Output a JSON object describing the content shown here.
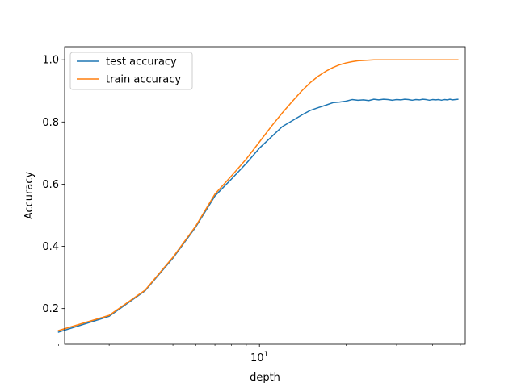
{
  "chart_data": {
    "type": "line",
    "xlabel": "depth",
    "ylabel": "Accuracy",
    "x_scale": "log",
    "xlim": [
      2.1,
      52
    ],
    "ylim": [
      0.085,
      1.042
    ],
    "x_ticks": [
      {
        "value": 10,
        "base": "10",
        "exp": "1"
      }
    ],
    "x_minor_ticks": [
      2,
      3,
      4,
      5,
      6,
      7,
      8,
      9,
      20,
      30,
      40,
      50
    ],
    "y_ticks": [
      {
        "value": 0.2,
        "label": "0.2"
      },
      {
        "value": 0.4,
        "label": "0.4"
      },
      {
        "value": 0.6,
        "label": "0.6"
      },
      {
        "value": 0.8,
        "label": "0.8"
      },
      {
        "value": 1.0,
        "label": "1.0"
      }
    ],
    "grid": false,
    "legend": "upper left",
    "x": [
      2,
      3,
      4,
      5,
      6,
      7,
      8,
      9,
      10,
      11,
      12,
      13,
      14,
      15,
      16,
      17,
      18,
      19,
      20,
      21,
      22,
      23,
      24,
      25,
      26,
      27,
      28,
      29,
      30,
      31,
      32,
      33,
      34,
      35,
      36,
      37,
      38,
      39,
      40,
      41,
      42,
      43,
      44,
      45,
      46,
      47,
      48,
      49
    ],
    "series": [
      {
        "name": "test accuracy",
        "color": "#1f77b4",
        "values": [
          0.124,
          0.175,
          0.257,
          0.362,
          0.462,
          0.562,
          0.617,
          0.667,
          0.716,
          0.752,
          0.785,
          0.804,
          0.822,
          0.837,
          0.846,
          0.854,
          0.862,
          0.864,
          0.867,
          0.872,
          0.87,
          0.871,
          0.869,
          0.873,
          0.871,
          0.873,
          0.872,
          0.87,
          0.872,
          0.871,
          0.873,
          0.872,
          0.87,
          0.872,
          0.871,
          0.873,
          0.872,
          0.87,
          0.872,
          0.871,
          0.872,
          0.87,
          0.872,
          0.871,
          0.873,
          0.871,
          0.872,
          0.873
        ]
      },
      {
        "name": "train accuracy",
        "color": "#ff7f0e",
        "values": [
          0.129,
          0.178,
          0.259,
          0.365,
          0.465,
          0.568,
          0.627,
          0.681,
          0.736,
          0.786,
          0.829,
          0.866,
          0.899,
          0.926,
          0.947,
          0.963,
          0.975,
          0.984,
          0.99,
          0.994,
          0.997,
          0.998,
          0.999,
          1.0,
          1.0,
          1.0,
          1.0,
          1.0,
          1.0,
          1.0,
          1.0,
          1.0,
          1.0,
          1.0,
          1.0,
          1.0,
          1.0,
          1.0,
          1.0,
          1.0,
          1.0,
          1.0,
          1.0,
          1.0,
          1.0,
          1.0,
          1.0,
          1.0
        ]
      }
    ]
  }
}
